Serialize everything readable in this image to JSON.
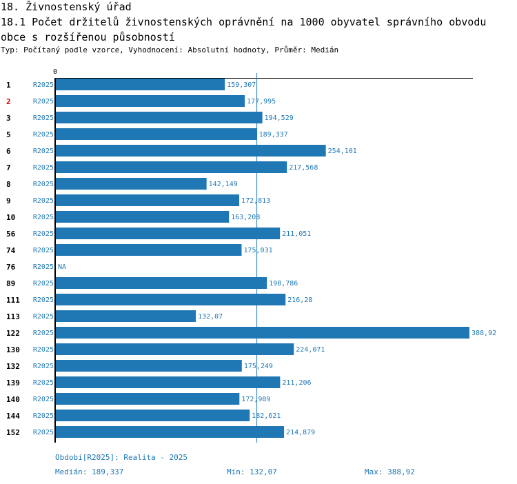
{
  "section_title": "18. Živnostenský úřad",
  "chart_title": "18.1 Počet držitelů živnostenských oprávnění na 1000 obyvatel správního obvodu obce s rozšířenou působností",
  "subtitle": "Typ: Počítaný podle vzorce, Vyhodnocení: Absolutní hodnoty, Průměr: Medián",
  "colors": {
    "bar": "#1f77b4",
    "highlight": "#e00000",
    "text": "#000000"
  },
  "chart_data": {
    "type": "bar",
    "orientation": "horizontal",
    "axis_zero_label": "0",
    "xlim": [
      0,
      391
    ],
    "median": 189.337,
    "period_label": "R2025",
    "categories": [
      "1",
      "2",
      "3",
      "5",
      "6",
      "7",
      "8",
      "9",
      "10",
      "56",
      "74",
      "76",
      "89",
      "111",
      "113",
      "122",
      "130",
      "132",
      "139",
      "140",
      "144",
      "152"
    ],
    "highlighted": "2",
    "values": [
      159.307,
      177.995,
      194.529,
      189.337,
      254.101,
      217.568,
      142.149,
      172.813,
      163.208,
      211.051,
      175.031,
      null,
      198.786,
      216.28,
      132.07,
      388.92,
      224.071,
      175.249,
      211.206,
      172.989,
      182.621,
      214.879
    ],
    "value_labels": [
      "159,307",
      "177,995",
      "194,529",
      "189,337",
      "254,101",
      "217,568",
      "142,149",
      "172,813",
      "163,208",
      "211,051",
      "175,031",
      "NA",
      "198,786",
      "216,28",
      "132,07",
      "388,92",
      "224,071",
      "175,249",
      "211,206",
      "172,989",
      "182,621",
      "214,879"
    ]
  },
  "footer": {
    "period": "Období[R2025]: Realita - 2025",
    "median": "Medián: 189,337",
    "min": "Min: 132,07",
    "max": "Max: 388,92"
  }
}
